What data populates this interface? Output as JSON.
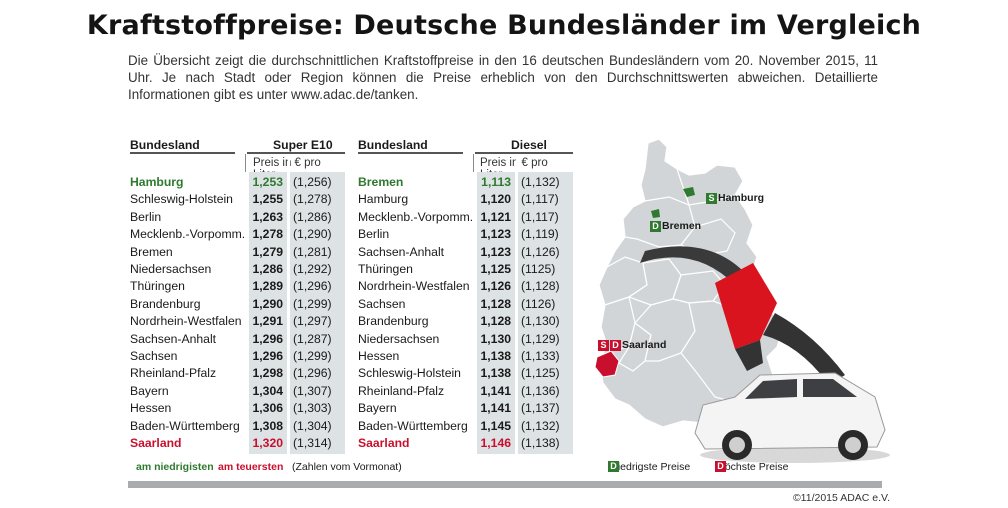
{
  "title": "Kraftstoffpreise: Deutsche Bundesländer im Vergleich",
  "intro": "Die Übersicht zeigt die durchschnittlichen Kraftstoffpreise in den 16 deutschen Bundesländern vom 20. November 2015, 11 Uhr. Je nach Stadt oder Region können die Preise erheblich von den Durchschnittswerten abweichen. Detaillierte Informationen gibt es unter www.adac.de/tanken.",
  "e10": {
    "col_land": "Bundesland",
    "col_fuel": "Super E10",
    "unit": "Preis in € pro Liter",
    "rows": [
      {
        "land": "Hamburg",
        "price": "1,253",
        "prev": "(1,256)",
        "highlight": "low"
      },
      {
        "land": "Schleswig-Holstein",
        "price": "1,255",
        "prev": "(1,278)",
        "highlight": ""
      },
      {
        "land": "Berlin",
        "price": "1,263",
        "prev": "(1,286)",
        "highlight": ""
      },
      {
        "land": "Mecklenb.-Vorpomm.",
        "price": "1,278",
        "prev": "(1,290)",
        "highlight": ""
      },
      {
        "land": "Bremen",
        "price": "1,279",
        "prev": "(1,281)",
        "highlight": ""
      },
      {
        "land": "Niedersachsen",
        "price": "1,286",
        "prev": "(1,292)",
        "highlight": ""
      },
      {
        "land": "Thüringen",
        "price": "1,289",
        "prev": "(1,296)",
        "highlight": ""
      },
      {
        "land": "Brandenburg",
        "price": "1,290",
        "prev": "(1,299)",
        "highlight": ""
      },
      {
        "land": "Nordrhein-Westfalen",
        "price": "1,291",
        "prev": "(1,297)",
        "highlight": ""
      },
      {
        "land": "Sachsen-Anhalt",
        "price": "1,296",
        "prev": "(1,287)",
        "highlight": ""
      },
      {
        "land": "Sachsen",
        "price": "1,296",
        "prev": "(1,299)",
        "highlight": ""
      },
      {
        "land": "Rheinland-Pfalz",
        "price": "1,298",
        "prev": "(1,296)",
        "highlight": ""
      },
      {
        "land": "Bayern",
        "price": "1,304",
        "prev": "(1,307)",
        "highlight": ""
      },
      {
        "land": "Hessen",
        "price": "1,306",
        "prev": "(1,303)",
        "highlight": ""
      },
      {
        "land": "Baden-Württemberg",
        "price": "1,308",
        "prev": "(1,304)",
        "highlight": ""
      },
      {
        "land": "Saarland",
        "price": "1,320",
        "prev": "(1,314)",
        "highlight": "high"
      }
    ]
  },
  "diesel": {
    "col_land": "Bundesland",
    "col_fuel": "Diesel",
    "unit": "Preis in € pro Liter",
    "rows": [
      {
        "land": "Bremen",
        "price": "1,113",
        "prev": "(1,132)",
        "highlight": "low"
      },
      {
        "land": "Hamburg",
        "price": "1,120",
        "prev": "(1,117)",
        "highlight": ""
      },
      {
        "land": "Mecklenb.-Vorpomm.",
        "price": "1,121",
        "prev": "(1,117)",
        "highlight": ""
      },
      {
        "land": "Berlin",
        "price": "1,123",
        "prev": "(1,119)",
        "highlight": ""
      },
      {
        "land": "Sachsen-Anhalt",
        "price": "1,123",
        "prev": "(1,126)",
        "highlight": ""
      },
      {
        "land": "Thüringen",
        "price": "1,125",
        "prev": "(1125)",
        "highlight": ""
      },
      {
        "land": "Nordrhein-Westfalen",
        "price": "1,126",
        "prev": "(1,128)",
        "highlight": ""
      },
      {
        "land": "Sachsen",
        "price": "1,128",
        "prev": "(1126)",
        "highlight": ""
      },
      {
        "land": "Brandenburg",
        "price": "1,128",
        "prev": "(1,130)",
        "highlight": ""
      },
      {
        "land": "Niedersachsen",
        "price": "1,130",
        "prev": "(1,129)",
        "highlight": ""
      },
      {
        "land": "Hessen",
        "price": "1,138",
        "prev": "(1,133)",
        "highlight": ""
      },
      {
        "land": "Schleswig-Holstein",
        "price": "1,138",
        "prev": "(1,125)",
        "highlight": ""
      },
      {
        "land": "Rheinland-Pfalz",
        "price": "1,141",
        "prev": "(1,136)",
        "highlight": ""
      },
      {
        "land": "Bayern",
        "price": "1,141",
        "prev": "(1,137)",
        "highlight": ""
      },
      {
        "land": "Baden-Württemberg",
        "price": "1,145",
        "prev": "(1,132)",
        "highlight": ""
      },
      {
        "land": "Saarland",
        "price": "1,146",
        "prev": "(1,138)",
        "highlight": "high"
      }
    ]
  },
  "legend": {
    "lowest": "am niedrigisten",
    "highest": "am teuersten",
    "note": "(Zahlen vom Vormonat)",
    "map_lowest": "niedrigste Preise",
    "map_highest": "höchste Preise",
    "badge_s": "S",
    "badge_d": "D"
  },
  "map": {
    "hamburg": "Hamburg",
    "bremen": "Bremen",
    "saarland": "Saarland"
  },
  "copyright": "©11/2015 ADAC e.V.",
  "colors": {
    "lowest": "#2f7a2f",
    "highest": "#c8102e",
    "band": "#dde2e4"
  }
}
